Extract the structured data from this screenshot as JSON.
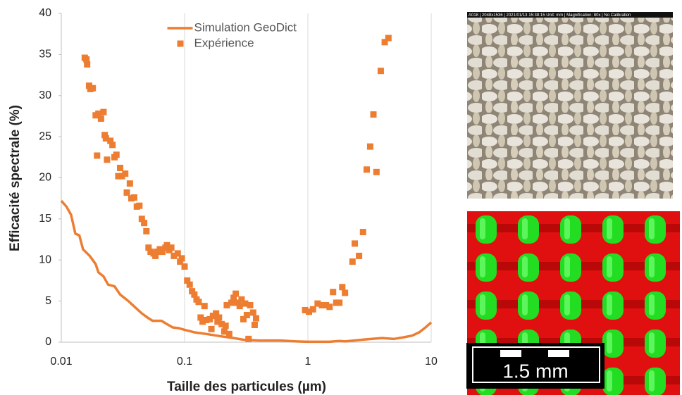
{
  "chart_data": {
    "type": "line",
    "xlabel": "Taille des particules (µm)",
    "ylabel": "Efficacité spectrale (%)",
    "xscale": "log",
    "xlim": [
      0.01,
      10
    ],
    "xticks": [
      0.01,
      0.1,
      1,
      10
    ],
    "ylim": [
      0,
      40
    ],
    "yticks": [
      0,
      5,
      10,
      15,
      20,
      25,
      30,
      35,
      40
    ],
    "grid": "x",
    "legend": "upper center",
    "series": [
      {
        "name": "Simulation GeoDict",
        "color": "#ed7d31",
        "mark": "line",
        "x": [
          0.01,
          0.011,
          0.012,
          0.013,
          0.014,
          0.015,
          0.017,
          0.019,
          0.02,
          0.022,
          0.024,
          0.027,
          0.03,
          0.035,
          0.04,
          0.045,
          0.05,
          0.055,
          0.065,
          0.07,
          0.08,
          0.09,
          0.1,
          0.12,
          0.15,
          0.2,
          0.25,
          0.3,
          0.4,
          0.6,
          0.8,
          1,
          1.5,
          1.8,
          2,
          3,
          4,
          5,
          6,
          7,
          8,
          9,
          10
        ],
        "values": [
          17.2,
          16.5,
          15.5,
          13.2,
          13,
          11.3,
          10.5,
          9.5,
          8.5,
          8,
          7,
          6.8,
          5.8,
          5,
          4.2,
          3.5,
          3,
          2.6,
          2.6,
          2.3,
          1.8,
          1.7,
          1.5,
          1.2,
          1,
          0.7,
          0.5,
          0.3,
          0.2,
          0.2,
          0.1,
          0.05,
          0.05,
          0.15,
          0.1,
          0.35,
          0.5,
          0.4,
          0.6,
          0.8,
          1.2,
          1.8,
          2.4
        ]
      },
      {
        "name": "Expérience",
        "color": "#ed7d31",
        "mark": "square",
        "x": [
          0.0155,
          0.016,
          0.0162,
          0.0168,
          0.0172,
          0.018,
          0.019,
          0.0195,
          0.02,
          0.021,
          0.022,
          0.0225,
          0.023,
          0.0235,
          0.025,
          0.026,
          0.027,
          0.028,
          0.029,
          0.03,
          0.031,
          0.033,
          0.034,
          0.036,
          0.037,
          0.039,
          0.041,
          0.043,
          0.045,
          0.047,
          0.049,
          0.051,
          0.053,
          0.056,
          0.058,
          0.06,
          0.063,
          0.066,
          0.07,
          0.072,
          0.075,
          0.078,
          0.082,
          0.088,
          0.092,
          0.095,
          0.1,
          0.105,
          0.11,
          0.115,
          0.12,
          0.125,
          0.13,
          0.135,
          0.14,
          0.145,
          0.15,
          0.16,
          0.165,
          0.17,
          0.18,
          0.185,
          0.19,
          0.2,
          0.21,
          0.215,
          0.22,
          0.23,
          0.24,
          0.25,
          0.26,
          0.27,
          0.28,
          0.29,
          0.3,
          0.31,
          0.32,
          0.33,
          0.34,
          0.36,
          0.37,
          0.38,
          0.95,
          1.02,
          1.1,
          1.2,
          1.3,
          1.4,
          1.5,
          1.6,
          1.7,
          1.8,
          1.9,
          2.0,
          2.3,
          2.4,
          2.6,
          2.8,
          3.0,
          3.2,
          3.4,
          3.6,
          3.9,
          4.2,
          4.5
        ],
        "values": [
          34.6,
          34.4,
          33.8,
          31.2,
          30.8,
          30.9,
          27.6,
          22.7,
          27.8,
          27.2,
          28,
          25.2,
          24.8,
          22.2,
          24.5,
          24,
          22.5,
          22.8,
          20.2,
          21.2,
          20.2,
          20.5,
          18.2,
          19.3,
          17.5,
          17.6,
          16.5,
          16.6,
          15,
          14.5,
          13.5,
          11.5,
          11,
          10.8,
          10.5,
          11,
          11.3,
          11,
          11.5,
          11.8,
          11.2,
          11.5,
          10.5,
          10.8,
          9.8,
          10.2,
          9.2,
          7.5,
          7,
          6.2,
          5.8,
          5.2,
          4.9,
          3,
          2.5,
          4.4,
          2.7,
          2.8,
          1.6,
          3.2,
          3.5,
          2.5,
          3,
          2.2,
          1.3,
          2,
          4.5,
          1,
          4.8,
          5.4,
          5.9,
          4.8,
          4.4,
          5.2,
          2.8,
          4.7,
          3.3,
          0.4,
          4.5,
          3.6,
          2.1,
          2.9,
          3.9,
          3.7,
          4.0,
          4.7,
          4.5,
          4.5,
          4.3,
          6.1,
          4.8,
          4.8,
          6.7,
          6.0,
          9.8,
          12,
          10.5,
          13.4,
          21,
          23.8,
          27.7,
          20.7,
          33,
          36.5,
          37
        ]
      }
    ]
  },
  "images": {
    "photo_caption": "A018 | 2048x1536 | 2021/01/13 15:38:15  Unit: mm | Magnification: 80x | No Calibration",
    "scale_bar": "1.5 mm"
  }
}
